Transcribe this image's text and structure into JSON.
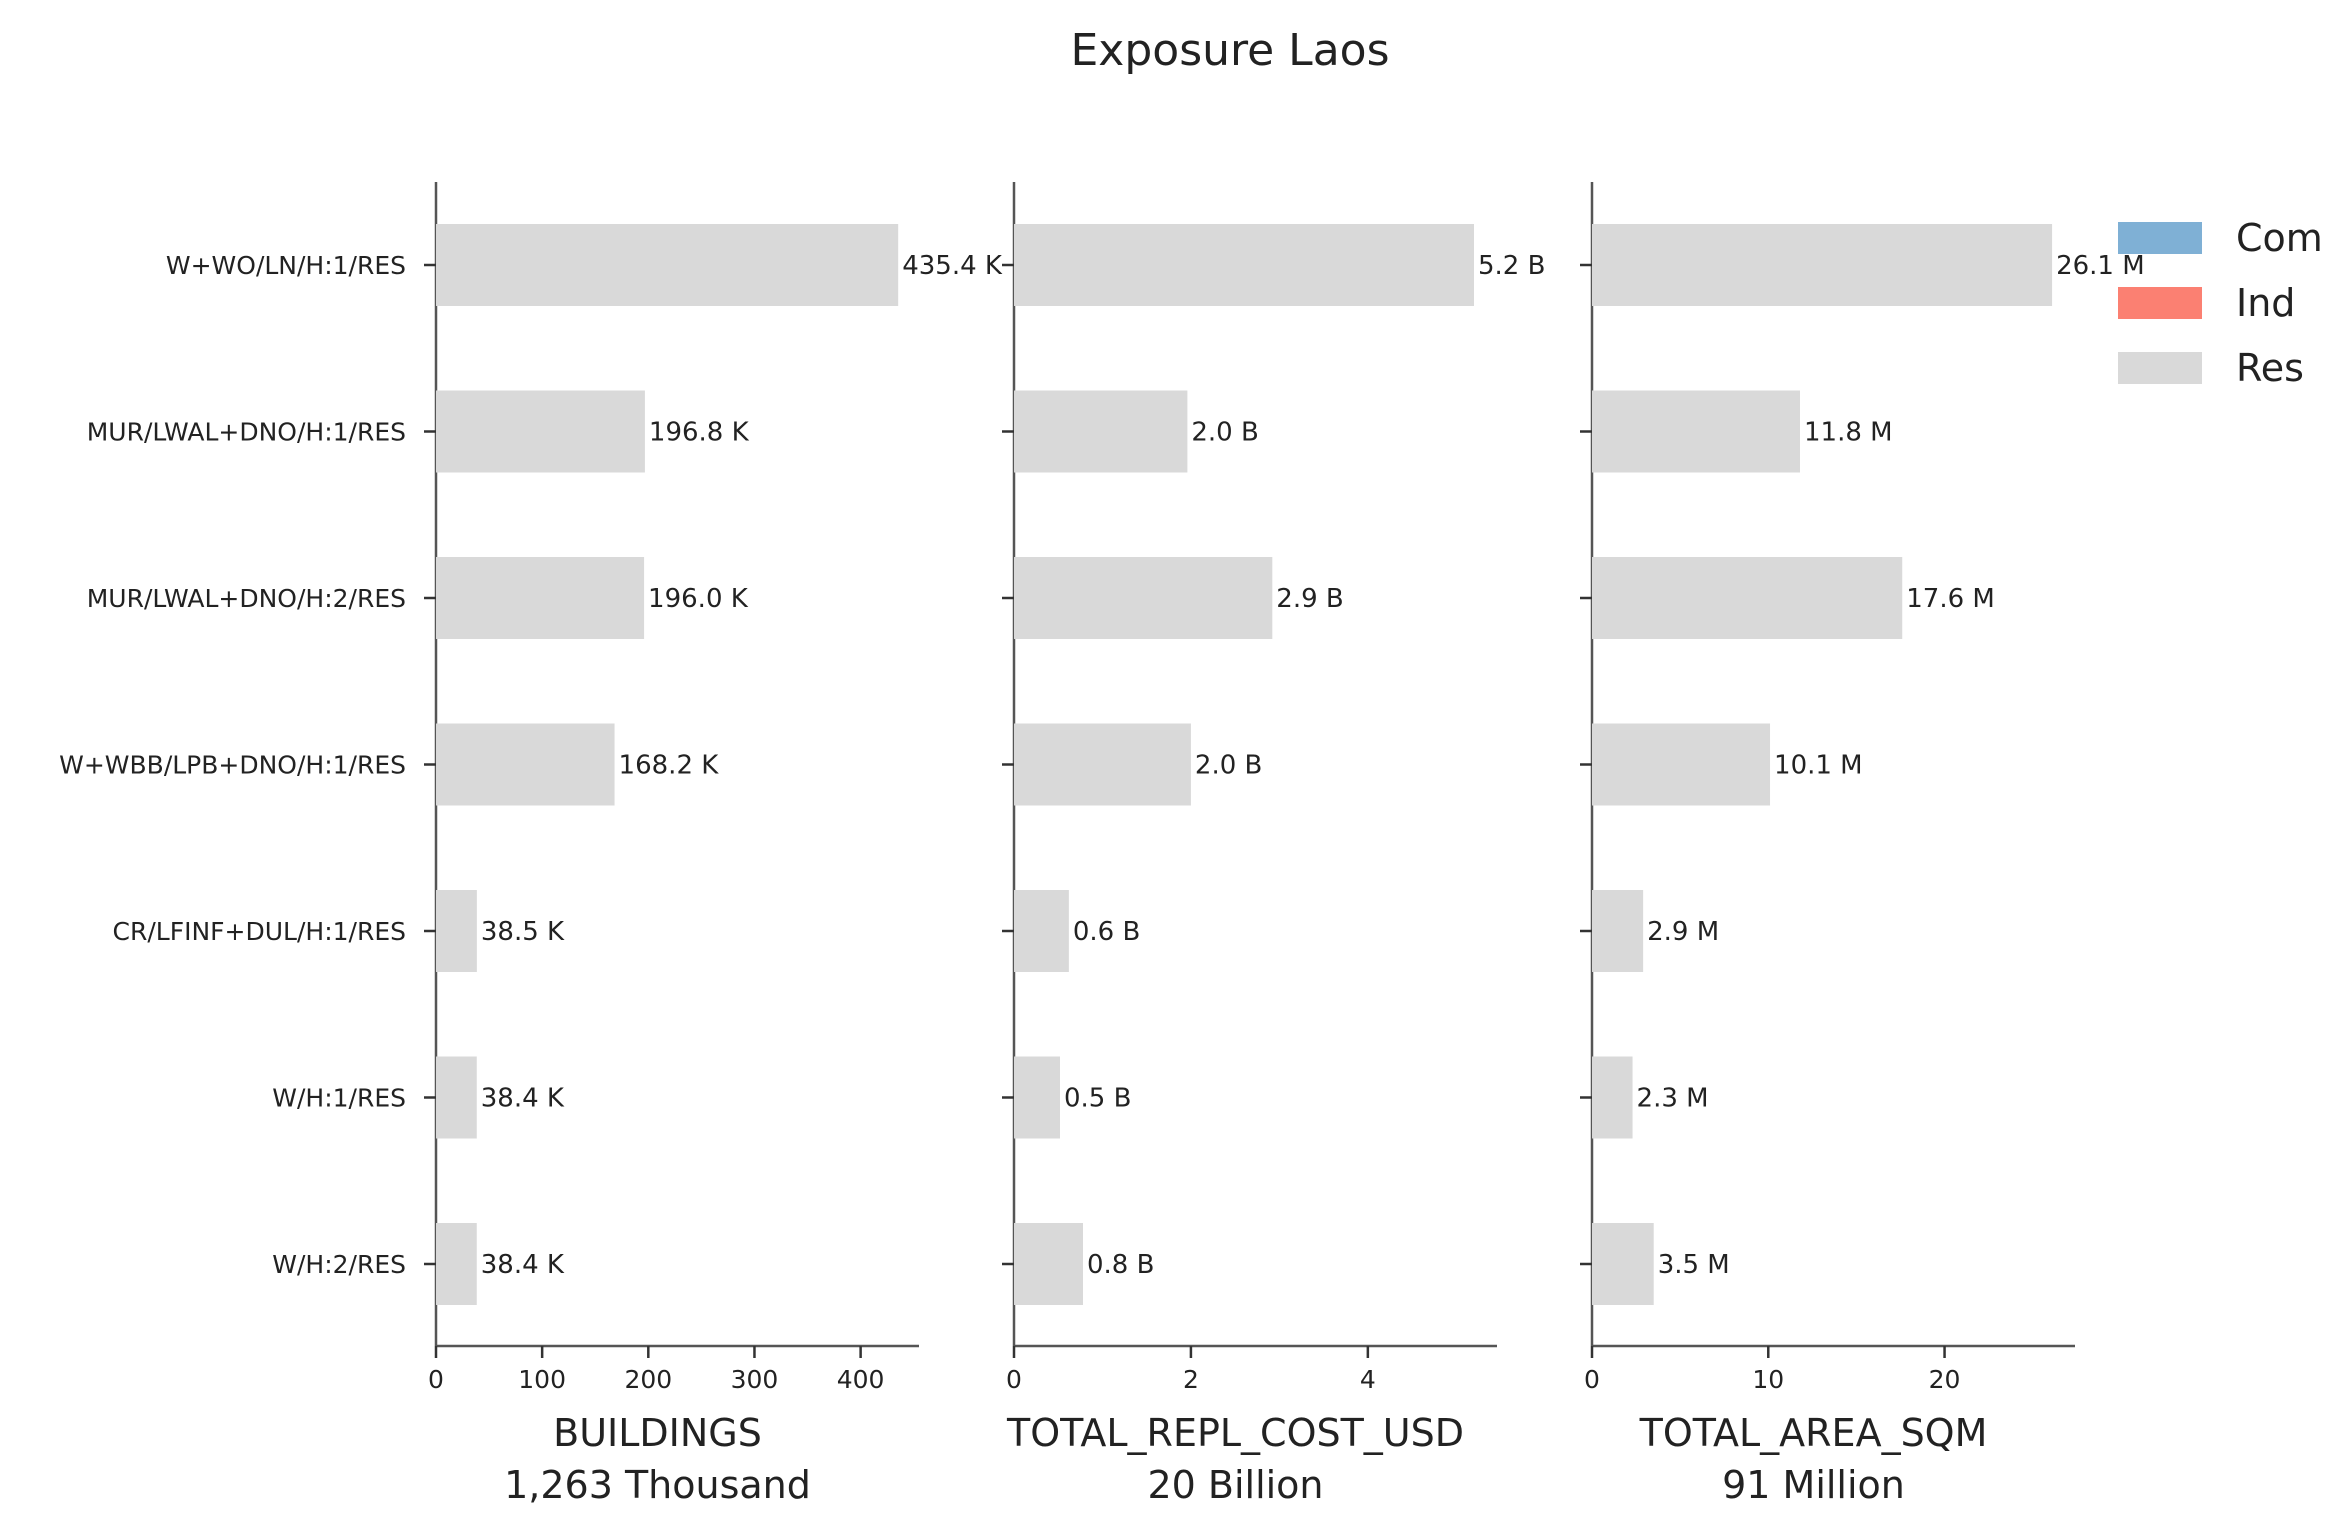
{
  "chart_data": {
    "type": "bar",
    "orientation": "horizontal",
    "title": "Exposure Laos",
    "categories": [
      "W+WO/LN/H:1/RES",
      "MUR/LWAL+DNO/H:1/RES",
      "MUR/LWAL+DNO/H:2/RES",
      "W+WBB/LPB+DNO/H:1/RES",
      "CR/LFINF+DUL/H:1/RES",
      "W/H:1/RES",
      "W/H:2/RES"
    ],
    "legend": {
      "placement": "top-right",
      "items": [
        {
          "label": "Com",
          "color": "#7fb0d5"
        },
        {
          "label": "Ind",
          "color": "#fb8072"
        },
        {
          "label": "Res",
          "color": "#d9d9d9"
        }
      ]
    },
    "panels": [
      {
        "xlabel": "BUILDINGS",
        "total": "1,263 Thousand",
        "xlim": [
          0,
          455
        ],
        "ticks": [
          0,
          100,
          200,
          300,
          400
        ],
        "values": [
          435.4,
          196.8,
          196.0,
          168.2,
          38.5,
          38.4,
          38.4
        ],
        "labels": [
          "435.4 K",
          "196.8 K",
          "196.0 K",
          "168.2 K",
          "38.5 K",
          "38.4 K",
          "38.4 K"
        ]
      },
      {
        "xlabel": "TOTAL_REPL_COST_USD",
        "total": "20 Billion",
        "xlim": [
          0,
          5.46
        ],
        "ticks": [
          0,
          2,
          4
        ],
        "values": [
          5.2,
          1.96,
          2.92,
          2.0,
          0.62,
          0.52,
          0.78
        ],
        "labels": [
          "5.2 B",
          "2.0 B",
          "2.9 B",
          "2.0 B",
          "0.6 B",
          "0.5 B",
          "0.8 B"
        ]
      },
      {
        "xlabel": "TOTAL_AREA_SQM",
        "total": "91 Million",
        "xlim": [
          0,
          27.4
        ],
        "ticks": [
          0,
          10,
          20
        ],
        "values": [
          26.1,
          11.8,
          17.6,
          10.1,
          2.9,
          2.3,
          3.5
        ],
        "labels": [
          "26.1 M",
          "11.8 M",
          "17.6 M",
          "10.1 M",
          "2.9 M",
          "2.3 M",
          "3.5 M"
        ]
      }
    ],
    "grid": false
  }
}
